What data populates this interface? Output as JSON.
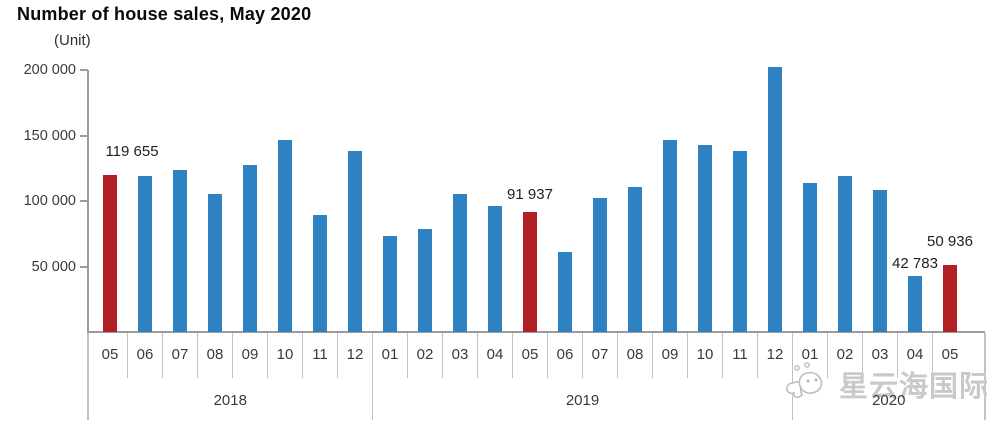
{
  "chart_data": {
    "type": "bar",
    "title": "Number of house sales, May 2020",
    "unit_label": "(Unit)",
    "ylabel": "",
    "xlabel": "",
    "ylim": [
      0,
      200000
    ],
    "grid": false,
    "legend": false,
    "bar_color": "#2e82c1",
    "highlight_color": "#b02024",
    "yticks": [
      {
        "value": 50000,
        "label": "50 000"
      },
      {
        "value": 100000,
        "label": "100 000"
      },
      {
        "value": 150000,
        "label": "150 000"
      },
      {
        "value": 200000,
        "label": "200 000"
      }
    ],
    "year_groups": [
      {
        "label": "2018"
      },
      {
        "label": "2019"
      },
      {
        "label": "2020"
      }
    ],
    "points": [
      {
        "year": "2018",
        "month": "05",
        "value": 119655,
        "highlighted": true,
        "data_label": "119 655"
      },
      {
        "year": "2018",
        "month": "06",
        "value": 119413,
        "highlighted": false,
        "data_label": ""
      },
      {
        "year": "2018",
        "month": "07",
        "value": 123878,
        "highlighted": false,
        "data_label": ""
      },
      {
        "year": "2018",
        "month": "08",
        "value": 105154,
        "highlighted": false,
        "data_label": ""
      },
      {
        "year": "2018",
        "month": "09",
        "value": 127327,
        "highlighted": false,
        "data_label": ""
      },
      {
        "year": "2018",
        "month": "10",
        "value": 146536,
        "highlighted": false,
        "data_label": ""
      },
      {
        "year": "2018",
        "month": "11",
        "value": 89626,
        "highlighted": false,
        "data_label": ""
      },
      {
        "year": "2018",
        "month": "12",
        "value": 137833,
        "highlighted": false,
        "data_label": ""
      },
      {
        "year": "2019",
        "month": "01",
        "value": 72937,
        "highlighted": false,
        "data_label": ""
      },
      {
        "year": "2019",
        "month": "02",
        "value": 78450,
        "highlighted": false,
        "data_label": ""
      },
      {
        "year": "2019",
        "month": "03",
        "value": 105046,
        "highlighted": false,
        "data_label": ""
      },
      {
        "year": "2019",
        "month": "04",
        "value": 96071,
        "highlighted": false,
        "data_label": ""
      },
      {
        "year": "2019",
        "month": "05",
        "value": 91937,
        "highlighted": true,
        "data_label": "91 937"
      },
      {
        "year": "2019",
        "month": "06",
        "value": 61355,
        "highlighted": false,
        "data_label": ""
      },
      {
        "year": "2019",
        "month": "07",
        "value": 102236,
        "highlighted": false,
        "data_label": ""
      },
      {
        "year": "2019",
        "month": "08",
        "value": 110538,
        "highlighted": false,
        "data_label": ""
      },
      {
        "year": "2019",
        "month": "09",
        "value": 146903,
        "highlighted": false,
        "data_label": ""
      },
      {
        "year": "2019",
        "month": "10",
        "value": 142810,
        "highlighted": false,
        "data_label": ""
      },
      {
        "year": "2019",
        "month": "11",
        "value": 138372,
        "highlighted": false,
        "data_label": ""
      },
      {
        "year": "2019",
        "month": "12",
        "value": 202074,
        "highlighted": false,
        "data_label": ""
      },
      {
        "year": "2020",
        "month": "01",
        "value": 113615,
        "highlighted": false,
        "data_label": ""
      },
      {
        "year": "2020",
        "month": "02",
        "value": 118753,
        "highlighted": false,
        "data_label": ""
      },
      {
        "year": "2020",
        "month": "03",
        "value": 108670,
        "highlighted": false,
        "data_label": ""
      },
      {
        "year": "2020",
        "month": "04",
        "value": 42783,
        "highlighted": false,
        "data_label": "42 783"
      },
      {
        "year": "2020",
        "month": "05",
        "value": 50936,
        "highlighted": true,
        "data_label": "50 936"
      }
    ]
  },
  "watermark": {
    "text": "星云海国际",
    "icon": "cloud-logo-icon"
  }
}
